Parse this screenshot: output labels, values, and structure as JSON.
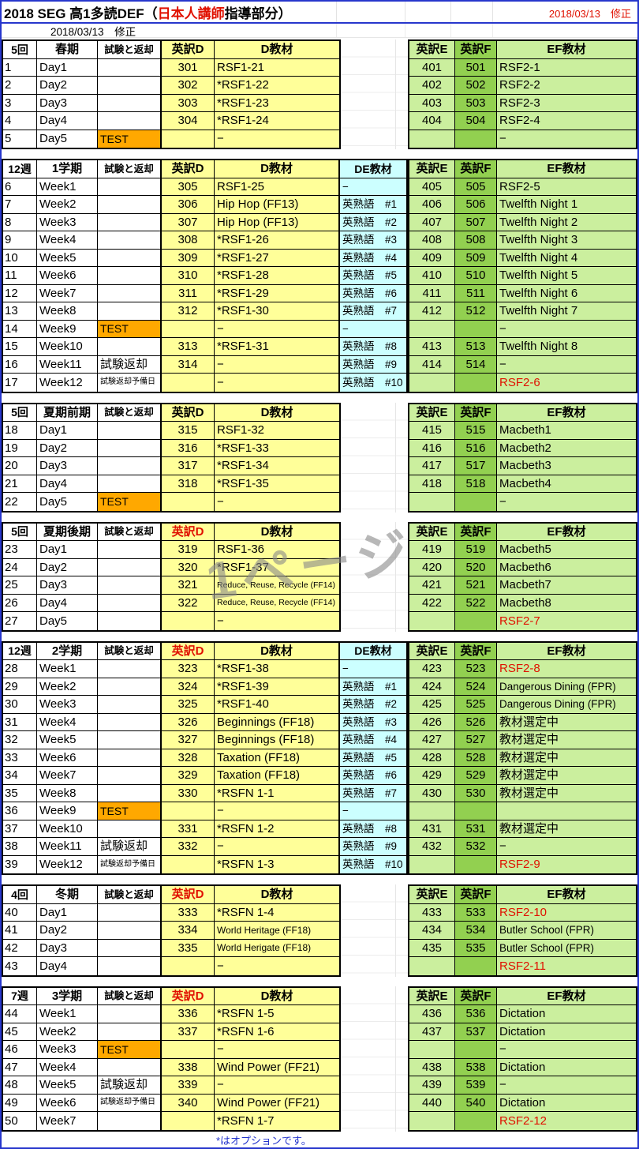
{
  "page": {
    "title": {
      "prefix": "2018 SEG 高1多読DEF（",
      "red": "日本人講師",
      "suffix": "指導部分）"
    },
    "revision_right": "2018/03/13　修正",
    "revision_left": "2018/03/13　修正",
    "watermark": "1ページ",
    "footer_note": "*はオプションです。"
  },
  "colors": {
    "cell_yellow": "#FFFF99",
    "cell_light_green": "#CBEF9E",
    "cell_dark_green": "#92D050",
    "cell_cyan": "#CCFFFF",
    "test_orange": "#FFA800",
    "red_text": "#E01000",
    "note_blue": "#2233CC",
    "page_border_blue": "#2736CC",
    "watermark_gray": "#8A8A8A"
  },
  "headers": {
    "exam": "試験と返却",
    "d_code": "英訳D",
    "d_mat": "D教材",
    "de_mat": "DE教材",
    "e_code": "英訳E",
    "f_code": "英訳F",
    "ef_mat": "EF教材"
  },
  "blocks": [
    {
      "count": "5回",
      "term": "春期",
      "red_d": false,
      "de": false,
      "rows": [
        {
          "n": "1",
          "day": "Day1",
          "exam": "",
          "xt": "",
          "d": "301",
          "dm": "RSF1-21",
          "e": "401",
          "f": "501",
          "ef": "RSF2-1"
        },
        {
          "n": "2",
          "day": "Day2",
          "exam": "",
          "xt": "",
          "d": "302",
          "dm": "*RSF1-22",
          "e": "402",
          "f": "502",
          "ef": "RSF2-2"
        },
        {
          "n": "3",
          "day": "Day3",
          "exam": "",
          "xt": "",
          "d": "303",
          "dm": "*RSF1-23",
          "e": "403",
          "f": "503",
          "ef": "RSF2-3"
        },
        {
          "n": "4",
          "day": "Day4",
          "exam": "",
          "xt": "",
          "d": "304",
          "dm": "*RSF1-24",
          "e": "404",
          "f": "504",
          "ef": "RSF2-4"
        },
        {
          "n": "5",
          "day": "Day5",
          "exam": "TEST",
          "xt": "test",
          "d": "",
          "dm": "−",
          "e": "",
          "f": "",
          "ef": "−"
        }
      ]
    },
    {
      "count": "12週",
      "term": "1学期",
      "red_d": false,
      "de": true,
      "rows": [
        {
          "n": "6",
          "day": "Week1",
          "exam": "",
          "xt": "",
          "d": "305",
          "dm": "RSF1-25",
          "dex": "−",
          "e": "405",
          "f": "505",
          "ef": "RSF2-5"
        },
        {
          "n": "7",
          "day": "Week2",
          "exam": "",
          "xt": "",
          "d": "306",
          "dm": "Hip Hop (FF13)",
          "dex": "英熟語　#1",
          "e": "406",
          "f": "506",
          "ef": "Twelfth Night 1"
        },
        {
          "n": "8",
          "day": "Week3",
          "exam": "",
          "xt": "",
          "d": "307",
          "dm": "Hip Hop (FF13)",
          "dex": "英熟語　#2",
          "e": "407",
          "f": "507",
          "ef": "Twelfth Night 2"
        },
        {
          "n": "9",
          "day": "Week4",
          "exam": "",
          "xt": "",
          "d": "308",
          "dm": "*RSF1-26",
          "dex": "英熟語　#3",
          "e": "408",
          "f": "508",
          "ef": "Twelfth Night 3"
        },
        {
          "n": "10",
          "day": "Week5",
          "exam": "",
          "xt": "",
          "d": "309",
          "dm": "*RSF1-27",
          "dex": "英熟語　#4",
          "e": "409",
          "f": "509",
          "ef": "Twelfth Night 4"
        },
        {
          "n": "11",
          "day": "Week6",
          "exam": "",
          "xt": "",
          "d": "310",
          "dm": "*RSF1-28",
          "dex": "英熟語　#5",
          "e": "410",
          "f": "510",
          "ef": "Twelfth Night 5"
        },
        {
          "n": "12",
          "day": "Week7",
          "exam": "",
          "xt": "",
          "d": "311",
          "dm": "*RSF1-29",
          "dex": "英熟語　#6",
          "e": "411",
          "f": "511",
          "ef": "Twelfth Night 6"
        },
        {
          "n": "13",
          "day": "Week8",
          "exam": "",
          "xt": "",
          "d": "312",
          "dm": "*RSF1-30",
          "dex": "英熟語　#7",
          "e": "412",
          "f": "512",
          "ef": "Twelfth Night 7"
        },
        {
          "n": "14",
          "day": "Week9",
          "exam": "TEST",
          "xt": "test",
          "d": "",
          "dm": "−",
          "dex": "−",
          "e": "",
          "f": "",
          "ef": "−"
        },
        {
          "n": "15",
          "day": "Week10",
          "exam": "",
          "xt": "",
          "d": "313",
          "dm": "*RSF1-31",
          "dex": "英熟語　#8",
          "e": "413",
          "f": "513",
          "ef": "Twelfth Night 8"
        },
        {
          "n": "16",
          "day": "Week11",
          "exam": "試験返却",
          "xt": "ret",
          "d": "314",
          "dm": "−",
          "dex": "英熟語　#9",
          "e": "414",
          "f": "514",
          "ef": "−"
        },
        {
          "n": "17",
          "day": "Week12",
          "exam": "試験返却予備日",
          "xt": "ret2",
          "d": "",
          "dm": "−",
          "dex": "英熟語　#10",
          "e": "",
          "f": "",
          "ef": "RSF2-6",
          "efr": true
        }
      ]
    },
    {
      "count": "5回",
      "term": "夏期前期",
      "red_d": false,
      "de": false,
      "rows": [
        {
          "n": "18",
          "day": "Day1",
          "exam": "",
          "xt": "",
          "d": "315",
          "dm": "RSF1-32",
          "e": "415",
          "f": "515",
          "ef": "Macbeth1"
        },
        {
          "n": "19",
          "day": "Day2",
          "exam": "",
          "xt": "",
          "d": "316",
          "dm": "*RSF1-33",
          "e": "416",
          "f": "516",
          "ef": "Macbeth2"
        },
        {
          "n": "20",
          "day": "Day3",
          "exam": "",
          "xt": "",
          "d": "317",
          "dm": "*RSF1-34",
          "e": "417",
          "f": "517",
          "ef": "Macbeth3"
        },
        {
          "n": "21",
          "day": "Day4",
          "exam": "",
          "xt": "",
          "d": "318",
          "dm": "*RSF1-35",
          "e": "418",
          "f": "518",
          "ef": "Macbeth4"
        },
        {
          "n": "22",
          "day": "Day5",
          "exam": "TEST",
          "xt": "test",
          "d": "",
          "dm": "−",
          "e": "",
          "f": "",
          "ef": "−"
        }
      ]
    },
    {
      "count": "5回",
      "term": "夏期後期",
      "red_d": true,
      "de": false,
      "rows": [
        {
          "n": "23",
          "day": "Day1",
          "exam": "",
          "xt": "",
          "d": "319",
          "dm": "RSF1-36",
          "e": "419",
          "f": "519",
          "ef": "Macbeth5"
        },
        {
          "n": "24",
          "day": "Day2",
          "exam": "",
          "xt": "",
          "d": "320",
          "dm": "*RSF1-37",
          "e": "420",
          "f": "520",
          "ef": "Macbeth6"
        },
        {
          "n": "25",
          "day": "Day3",
          "exam": "",
          "xt": "",
          "d": "321",
          "dm": "Reduce, Reuse, Recycle (FF14)",
          "dms": "s",
          "e": "421",
          "f": "521",
          "ef": "Macbeth7"
        },
        {
          "n": "26",
          "day": "Day4",
          "exam": "",
          "xt": "",
          "d": "322",
          "dm": "Reduce, Reuse, Recycle (FF14)",
          "dms": "s",
          "e": "422",
          "f": "522",
          "ef": "Macbeth8"
        },
        {
          "n": "27",
          "day": "Day5",
          "exam": "",
          "xt": "",
          "d": "",
          "dm": "−",
          "e": "",
          "f": "",
          "ef": "RSF2-7",
          "efr": true
        }
      ]
    },
    {
      "count": "12週",
      "term": "2学期",
      "red_d": true,
      "de": true,
      "rows": [
        {
          "n": "28",
          "day": "Week1",
          "exam": "",
          "xt": "",
          "d": "323",
          "dm": "*RSF1-38",
          "dex": "−",
          "e": "423",
          "f": "523",
          "ef": "RSF2-8",
          "efr": true
        },
        {
          "n": "29",
          "day": "Week2",
          "exam": "",
          "xt": "",
          "d": "324",
          "dm": "*RSF1-39",
          "dex": "英熟語　#1",
          "e": "424",
          "f": "524",
          "ef": "Dangerous Dining (FPR)",
          "efs": true
        },
        {
          "n": "30",
          "day": "Week3",
          "exam": "",
          "xt": "",
          "d": "325",
          "dm": "*RSF1-40",
          "dex": "英熟語　#2",
          "e": "425",
          "f": "525",
          "ef": "Dangerous Dining (FPR)",
          "efs": true
        },
        {
          "n": "31",
          "day": "Week4",
          "exam": "",
          "xt": "",
          "d": "326",
          "dm": "Beginnings (FF18)",
          "dex": "英熟語　#3",
          "e": "426",
          "f": "526",
          "ef": "教材選定中"
        },
        {
          "n": "32",
          "day": "Week5",
          "exam": "",
          "xt": "",
          "d": "327",
          "dm": "Beginnings (FF18)",
          "dex": "英熟語　#4",
          "e": "427",
          "f": "527",
          "ef": "教材選定中"
        },
        {
          "n": "33",
          "day": "Week6",
          "exam": "",
          "xt": "",
          "d": "328",
          "dm": "Taxation (FF18)",
          "dex": "英熟語　#5",
          "e": "428",
          "f": "528",
          "ef": "教材選定中"
        },
        {
          "n": "34",
          "day": "Week7",
          "exam": "",
          "xt": "",
          "d": "329",
          "dm": "Taxation (FF18)",
          "dex": "英熟語　#6",
          "e": "429",
          "f": "529",
          "ef": "教材選定中"
        },
        {
          "n": "35",
          "day": "Week8",
          "exam": "",
          "xt": "",
          "d": "330",
          "dm": "*RSFN 1-1",
          "dex": "英熟語　#7",
          "e": "430",
          "f": "530",
          "ef": "教材選定中"
        },
        {
          "n": "36",
          "day": "Week9",
          "exam": "TEST",
          "xt": "test",
          "d": "",
          "dm": "−",
          "dex": "−",
          "e": "",
          "f": "",
          "ef": ""
        },
        {
          "n": "37",
          "day": "Week10",
          "exam": "",
          "xt": "",
          "d": "331",
          "dm": "*RSFN 1-2",
          "dex": "英熟語　#8",
          "e": "431",
          "f": "531",
          "ef": "教材選定中"
        },
        {
          "n": "38",
          "day": "Week11",
          "exam": "試験返却",
          "xt": "ret",
          "d": "332",
          "dm": "−",
          "dex": "英熟語　#9",
          "e": "432",
          "f": "532",
          "ef": "−"
        },
        {
          "n": "39",
          "day": "Week12",
          "exam": "試験返却予備日",
          "xt": "ret2",
          "d": "",
          "dm": "*RSFN 1-3",
          "dex": "英熟語　#10",
          "e": "",
          "f": "",
          "ef": "RSF2-9",
          "efr": true
        }
      ]
    },
    {
      "count": "4回",
      "term": "冬期",
      "red_d": true,
      "de": false,
      "rows": [
        {
          "n": "40",
          "day": "Day1",
          "exam": "",
          "xt": "",
          "d": "333",
          "dm": "*RSFN 1-4",
          "e": "433",
          "f": "533",
          "ef": "RSF2-10",
          "efr": true
        },
        {
          "n": "41",
          "day": "Day2",
          "exam": "",
          "xt": "",
          "d": "334",
          "dm": "World Heritage (FF18)",
          "dms": "m",
          "e": "434",
          "f": "534",
          "ef": "Butler School (FPR)",
          "efs": true
        },
        {
          "n": "42",
          "day": "Day3",
          "exam": "",
          "xt": "",
          "d": "335",
          "dm": "World Herigate (FF18)",
          "dms": "m",
          "e": "435",
          "f": "535",
          "ef": "Butler School (FPR)",
          "efs": true
        },
        {
          "n": "43",
          "day": "Day4",
          "exam": "",
          "xt": "",
          "d": "",
          "dm": "−",
          "e": "",
          "f": "",
          "ef": "RSF2-11",
          "efr": true
        }
      ]
    },
    {
      "count": "7週",
      "term": "3学期",
      "red_d": true,
      "de": false,
      "rows": [
        {
          "n": "44",
          "day": "Week1",
          "exam": "",
          "xt": "",
          "d": "336",
          "dm": "*RSFN 1-5",
          "e": "436",
          "f": "536",
          "ef": "Dictation"
        },
        {
          "n": "45",
          "day": "Week2",
          "exam": "",
          "xt": "",
          "d": "337",
          "dm": "*RSFN 1-6",
          "e": "437",
          "f": "537",
          "ef": "Dictation"
        },
        {
          "n": "46",
          "day": "Week3",
          "exam": "TEST",
          "xt": "test",
          "d": "",
          "dm": "−",
          "e": "",
          "f": "",
          "ef": "−"
        },
        {
          "n": "47",
          "day": "Week4",
          "exam": "",
          "xt": "",
          "d": "338",
          "dm": "Wind Power (FF21)",
          "e": "438",
          "f": "538",
          "ef": "Dictation"
        },
        {
          "n": "48",
          "day": "Week5",
          "exam": "試験返却",
          "xt": "ret",
          "d": "339",
          "dm": "−",
          "e": "439",
          "f": "539",
          "ef": "−"
        },
        {
          "n": "49",
          "day": "Week6",
          "exam": "試験返却予備日",
          "xt": "ret2",
          "d": "340",
          "dm": "Wind Power (FF21)",
          "e": "440",
          "f": "540",
          "ef": "Dictation"
        },
        {
          "n": "50",
          "day": "Week7",
          "exam": "",
          "xt": "",
          "d": "",
          "dm": "*RSFN 1-7",
          "e": "",
          "f": "",
          "ef": "RSF2-12",
          "efr": true
        }
      ]
    }
  ]
}
